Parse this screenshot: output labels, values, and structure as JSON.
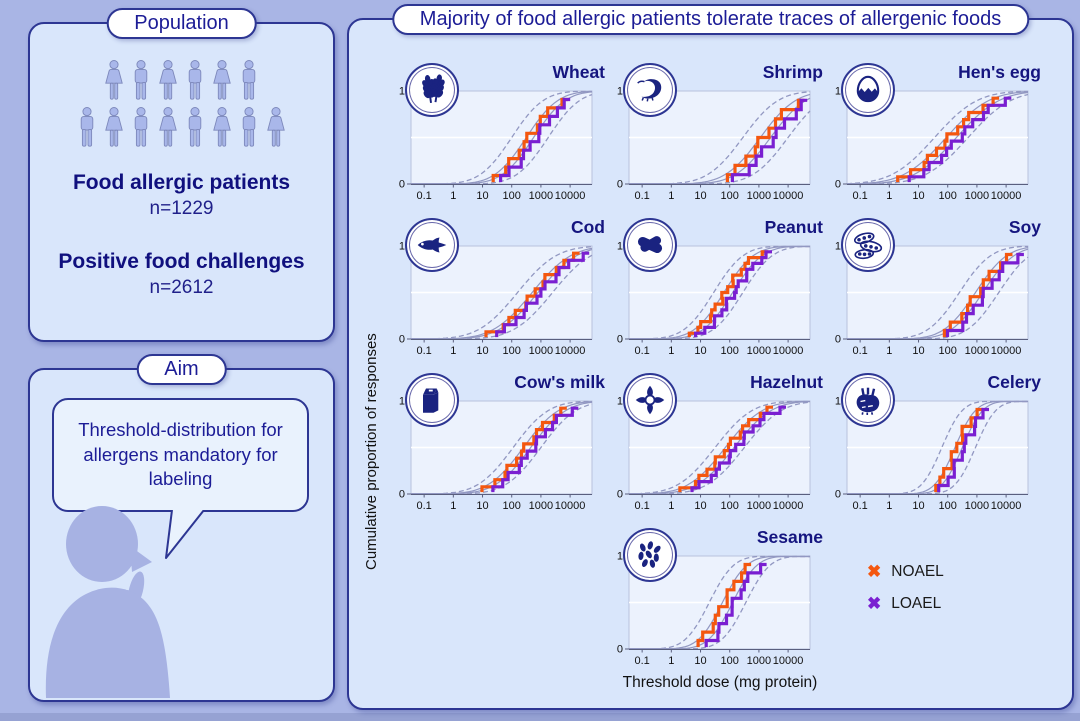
{
  "colors": {
    "background": "#a9b5e5",
    "panel_fill": "#d9e6fb",
    "panel_border": "#2d3693",
    "navy_text": "#15157f",
    "plot_fill": "#ecf2fd",
    "fit_curve": "#9298c2",
    "noael": "#f4570f",
    "loael": "#7a1fd1",
    "pictogram": "#a9b7ea"
  },
  "population": {
    "title": "Population",
    "pictogram_rows": [
      [
        "female",
        "male",
        "female",
        "male",
        "female",
        "male"
      ],
      [
        "male",
        "female",
        "male",
        "female",
        "male",
        "female",
        "male",
        "female"
      ]
    ],
    "stat1_label": "Food allergic patients",
    "stat1_value": "n=1229",
    "stat2_label": "Positive food challenges",
    "stat2_value": "n=2612"
  },
  "aim": {
    "title": "Aim",
    "bubble_text": "Threshold-distribution for allergens mandatory for labeling"
  },
  "results": {
    "title": "Majority of food allergic patients tolerate traces of allergenic foods",
    "ylabel": "Cumulative proportion of responses",
    "xlabel": "Threshold dose (mg protein)",
    "legend": [
      {
        "label": "NOAEL",
        "marker": "✖",
        "color": "#f4570f"
      },
      {
        "label": "LOAEL",
        "marker": "✖",
        "color": "#7a1fd1"
      }
    ]
  },
  "chart_data": [
    {
      "type": "step-cdf",
      "title": "Wheat",
      "icon": "wheat-icon",
      "x_ticks": [
        0.1,
        1,
        10,
        100,
        1000,
        10000
      ],
      "y_ticks": [
        0,
        1
      ],
      "ylim": [
        0,
        1
      ],
      "log10_xlim": [
        -1.45,
        4.75
      ],
      "x_unit": "mg protein",
      "ci_log10_offset": 0.5,
      "series": [
        {
          "name": "NOAEL",
          "color": "#f4570f",
          "log10_ed50": 2.5,
          "log10_sigma": 0.85,
          "n_points": 10
        },
        {
          "name": "LOAEL",
          "color": "#7a1fd1",
          "log10_ed50": 2.75,
          "log10_sigma": 0.85,
          "n_points": 10
        }
      ]
    },
    {
      "type": "step-cdf",
      "title": "Shrimp",
      "icon": "shrimp-icon",
      "x_ticks": [
        0.1,
        1,
        10,
        100,
        1000,
        10000
      ],
      "y_ticks": [
        0,
        1
      ],
      "ylim": [
        0,
        1
      ],
      "log10_xlim": [
        -1.45,
        4.75
      ],
      "x_unit": "mg protein",
      "ci_log10_offset": 0.6,
      "series": [
        {
          "name": "NOAEL",
          "color": "#f4570f",
          "log10_ed50": 3.05,
          "log10_sigma": 0.95,
          "n_points": 9
        },
        {
          "name": "LOAEL",
          "color": "#7a1fd1",
          "log10_ed50": 3.4,
          "log10_sigma": 0.95,
          "n_points": 9
        }
      ]
    },
    {
      "type": "step-cdf",
      "title": "Hen's egg",
      "icon": "egg-icon",
      "x_ticks": [
        0.1,
        1,
        10,
        100,
        1000,
        10000
      ],
      "y_ticks": [
        0,
        1
      ],
      "ylim": [
        0,
        1
      ],
      "log10_xlim": [
        -1.45,
        4.75
      ],
      "x_unit": "mg protein",
      "ci_log10_offset": 0.4,
      "series": [
        {
          "name": "NOAEL",
          "color": "#f4570f",
          "log10_ed50": 1.95,
          "log10_sigma": 1.15,
          "n_points": 12
        },
        {
          "name": "LOAEL",
          "color": "#7a1fd1",
          "log10_ed50": 2.3,
          "log10_sigma": 1.15,
          "n_points": 12
        }
      ]
    },
    {
      "type": "step-cdf",
      "title": "Cod",
      "icon": "fish-icon",
      "x_ticks": [
        0.1,
        1,
        10,
        100,
        1000,
        10000
      ],
      "y_ticks": [
        0,
        1
      ],
      "ylim": [
        0,
        1
      ],
      "log10_xlim": [
        -1.45,
        4.75
      ],
      "x_unit": "mg protein",
      "ci_log10_offset": 0.5,
      "series": [
        {
          "name": "NOAEL",
          "color": "#f4570f",
          "log10_ed50": 2.7,
          "log10_sigma": 1.05,
          "n_points": 12
        },
        {
          "name": "LOAEL",
          "color": "#7a1fd1",
          "log10_ed50": 2.9,
          "log10_sigma": 1.05,
          "n_points": 12
        }
      ]
    },
    {
      "type": "step-cdf",
      "title": "Peanut",
      "icon": "peanut-icon",
      "x_ticks": [
        0.1,
        1,
        10,
        100,
        1000,
        10000
      ],
      "y_ticks": [
        0,
        1
      ],
      "ylim": [
        0,
        1
      ],
      "log10_xlim": [
        -1.45,
        4.75
      ],
      "x_unit": "mg protein",
      "ci_log10_offset": 0.35,
      "series": [
        {
          "name": "NOAEL",
          "color": "#f4570f",
          "log10_ed50": 1.8,
          "log10_sigma": 0.8,
          "n_points": 15
        },
        {
          "name": "LOAEL",
          "color": "#7a1fd1",
          "log10_ed50": 2.1,
          "log10_sigma": 0.8,
          "n_points": 15
        }
      ]
    },
    {
      "type": "step-cdf",
      "title": "Soy",
      "icon": "soy-icon",
      "x_ticks": [
        0.1,
        1,
        10,
        100,
        1000,
        10000
      ],
      "y_ticks": [
        0,
        1
      ],
      "ylim": [
        0,
        1
      ],
      "log10_xlim": [
        -1.45,
        4.75
      ],
      "x_unit": "mg protein",
      "ci_log10_offset": 0.55,
      "series": [
        {
          "name": "NOAEL",
          "color": "#f4570f",
          "log10_ed50": 2.95,
          "log10_sigma": 0.85,
          "n_points": 10
        },
        {
          "name": "LOAEL",
          "color": "#7a1fd1",
          "log10_ed50": 3.2,
          "log10_sigma": 0.85,
          "n_points": 10
        }
      ]
    },
    {
      "type": "step-cdf",
      "title": "Cow's milk",
      "icon": "milk-icon",
      "x_ticks": [
        0.1,
        1,
        10,
        100,
        1000,
        10000
      ],
      "y_ticks": [
        0,
        1
      ],
      "ylim": [
        0,
        1
      ],
      "log10_xlim": [
        -1.45,
        4.75
      ],
      "x_unit": "mg protein",
      "ci_log10_offset": 0.35,
      "series": [
        {
          "name": "NOAEL",
          "color": "#f4570f",
          "log10_ed50": 2.4,
          "log10_sigma": 0.95,
          "n_points": 12
        },
        {
          "name": "LOAEL",
          "color": "#7a1fd1",
          "log10_ed50": 2.65,
          "log10_sigma": 0.95,
          "n_points": 12
        }
      ]
    },
    {
      "type": "step-cdf",
      "title": "Hazelnut",
      "icon": "hazelnut-icon",
      "x_ticks": [
        0.1,
        1,
        10,
        100,
        1000,
        10000
      ],
      "y_ticks": [
        0,
        1
      ],
      "ylim": [
        0,
        1
      ],
      "log10_xlim": [
        -1.45,
        4.75
      ],
      "x_unit": "mg protein",
      "ci_log10_offset": 0.35,
      "series": [
        {
          "name": "NOAEL",
          "color": "#f4570f",
          "log10_ed50": 1.85,
          "log10_sigma": 1.0,
          "n_points": 14
        },
        {
          "name": "LOAEL",
          "color": "#7a1fd1",
          "log10_ed50": 2.15,
          "log10_sigma": 1.0,
          "n_points": 14
        }
      ]
    },
    {
      "type": "step-cdf",
      "title": "Celery",
      "icon": "celery-icon",
      "x_ticks": [
        0.1,
        1,
        10,
        100,
        1000,
        10000
      ],
      "y_ticks": [
        0,
        1
      ],
      "ylim": [
        0,
        1
      ],
      "log10_xlim": [
        -1.45,
        4.75
      ],
      "x_unit": "mg protein",
      "ci_log10_offset": 0.45,
      "series": [
        {
          "name": "NOAEL",
          "color": "#f4570f",
          "log10_ed50": 2.25,
          "log10_sigma": 0.55,
          "n_points": 10
        },
        {
          "name": "LOAEL",
          "color": "#7a1fd1",
          "log10_ed50": 2.5,
          "log10_sigma": 0.55,
          "n_points": 10
        }
      ]
    },
    {
      "type": "step-cdf",
      "title": "Sesame",
      "icon": "sesame-icon",
      "x_ticks": [
        0.1,
        1,
        10,
        100,
        1000,
        10000
      ],
      "y_ticks": [
        0,
        1
      ],
      "ylim": [
        0,
        1
      ],
      "log10_xlim": [
        -1.45,
        4.75
      ],
      "x_unit": "mg protein",
      "ci_log10_offset": 0.45,
      "series": [
        {
          "name": "NOAEL",
          "color": "#f4570f",
          "log10_ed50": 1.75,
          "log10_sigma": 0.65,
          "n_points": 10
        },
        {
          "name": "LOAEL",
          "color": "#7a1fd1",
          "log10_ed50": 2.1,
          "log10_sigma": 0.65,
          "n_points": 10
        }
      ]
    }
  ]
}
